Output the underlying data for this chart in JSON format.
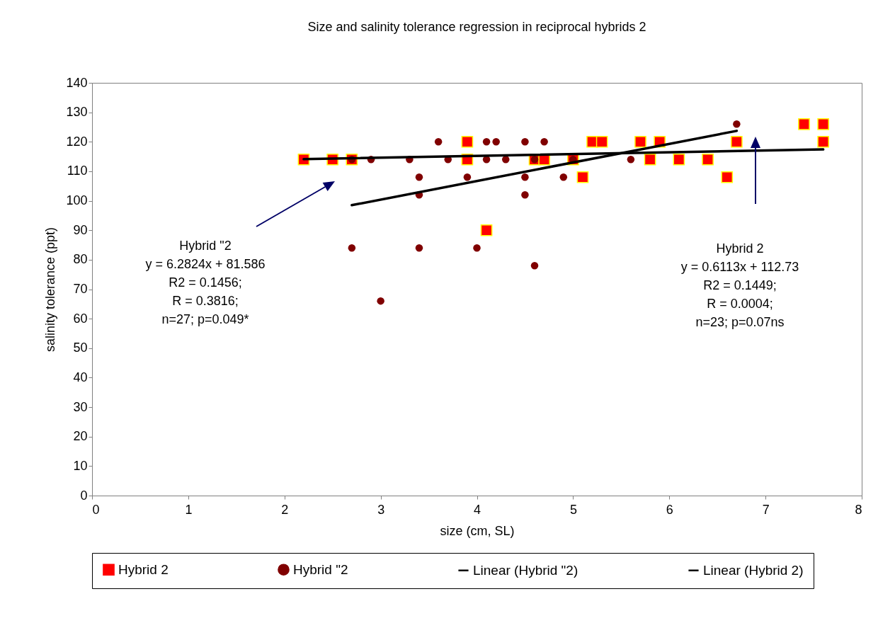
{
  "chart_data": {
    "type": "scatter",
    "title": "Size and salinity tolerance regression in reciprocal hybrids 2",
    "xlabel": "size (cm, SL)",
    "ylabel": "salinity tolerance (ppt)",
    "xlim": [
      0,
      8
    ],
    "xticks": [
      0,
      1,
      2,
      3,
      4,
      5,
      6,
      7,
      8
    ],
    "ylim": [
      0,
      140
    ],
    "yticks": [
      0,
      10,
      20,
      30,
      40,
      50,
      60,
      70,
      80,
      90,
      100,
      110,
      120,
      130,
      140
    ],
    "grid": false,
    "legend": "bottom",
    "line_style": "solid",
    "annotations": [
      "Hybrid \"2\ny = 6.2824x + 81.586\nR2 = 0.1456;\nR = 0.3816;\nn=27; p=0.049*",
      "Hybrid 2\ny = 0.6113x + 112.73\nR2 = 0.1449;\nR = 0.0004;\nn=23; p=0.07ns"
    ],
    "series": [
      {
        "name": "Hybrid 2",
        "marker": "square",
        "color": "#ff0000",
        "x": [
          2.2,
          2.5,
          2.7,
          3.9,
          3.9,
          4.1,
          4.6,
          4.7,
          5.0,
          5.1,
          5.2,
          5.3,
          5.7,
          5.8,
          5.9,
          6.1,
          6.4,
          6.6,
          6.7,
          7.4,
          7.6,
          7.6
        ],
        "values": [
          114,
          114,
          114,
          120,
          114,
          90,
          114,
          114,
          114,
          108,
          120,
          120,
          120,
          114,
          120,
          114,
          114,
          108,
          120,
          126,
          126,
          120
        ]
      },
      {
        "name": "Hybrid \"2",
        "marker": "circle",
        "color": "#800000",
        "x": [
          3.6,
          4.1,
          4.2,
          4.5,
          4.7,
          2.7,
          2.9,
          3.3,
          3.7,
          4.1,
          4.3,
          4.6,
          5.0,
          5.6,
          3.4,
          3.9,
          4.5,
          4.9,
          3.4,
          4.5,
          2.7,
          3.4,
          4.0,
          4.6,
          3.0,
          6.7
        ],
        "values": [
          120,
          120,
          120,
          120,
          120,
          114,
          114,
          114,
          114,
          114,
          114,
          114,
          114,
          114,
          108,
          108,
          108,
          108,
          102,
          102,
          84,
          84,
          84,
          78,
          66,
          126
        ]
      },
      {
        "name": "Linear (Hybrid \"2)",
        "type": "line",
        "color": "#000000",
        "x": [
          2.7,
          6.7
        ],
        "values": [
          98.5,
          123.7
        ]
      },
      {
        "name": "Linear (Hybrid 2)",
        "type": "line",
        "color": "#000000",
        "x": [
          2.2,
          7.6
        ],
        "values": [
          114.1,
          117.4
        ]
      }
    ]
  }
}
